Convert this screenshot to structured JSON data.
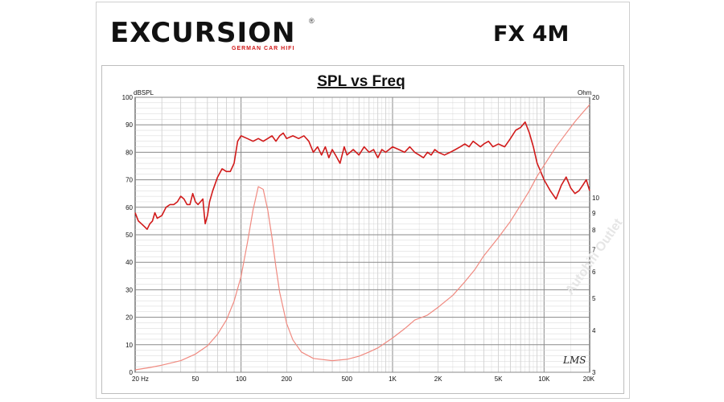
{
  "brand": {
    "logo": "EXCURSION",
    "registered": "®",
    "tagline": "GERMAN CAR HIFI",
    "model": "FX 4M",
    "accent": "#d11a1a"
  },
  "watermark": "Autohifi Outlet",
  "chart_data": {
    "type": "line",
    "title": "SPL vs Freq",
    "y_left_unit": "dBSPL",
    "y_right_unit": "Ohm",
    "x_scale": "log",
    "xlim": [
      20,
      20000
    ],
    "ylim": [
      0,
      100
    ],
    "y_right_lim": [
      3,
      20
    ],
    "y_right_scale": "log",
    "x_ticks": [
      {
        "value": 20,
        "label": "20 Hz"
      },
      {
        "value": 50,
        "label": "50"
      },
      {
        "value": 100,
        "label": "100"
      },
      {
        "value": 200,
        "label": "200"
      },
      {
        "value": 500,
        "label": "500"
      },
      {
        "value": 1000,
        "label": "1K"
      },
      {
        "value": 2000,
        "label": "2K"
      },
      {
        "value": 5000,
        "label": "5K"
      },
      {
        "value": 10000,
        "label": "10K"
      },
      {
        "value": 20000,
        "label": "20K"
      }
    ],
    "y_left_ticks": [
      0,
      10,
      20,
      30,
      40,
      50,
      60,
      70,
      80,
      90,
      100
    ],
    "y_right_ticks": [
      3,
      4,
      5,
      6,
      7,
      8,
      9,
      10,
      20
    ],
    "grid": true,
    "signature": "LMS",
    "series": [
      {
        "axis": "left",
        "color": "#d11a1a",
        "points": [
          [
            20,
            58
          ],
          [
            21,
            55
          ],
          [
            22,
            54
          ],
          [
            23,
            53
          ],
          [
            24,
            52
          ],
          [
            25,
            54
          ],
          [
            26,
            55
          ],
          [
            27,
            58
          ],
          [
            28,
            56
          ],
          [
            30,
            57
          ],
          [
            32,
            60
          ],
          [
            34,
            61
          ],
          [
            36,
            61
          ],
          [
            38,
            62
          ],
          [
            40,
            64
          ],
          [
            42,
            63
          ],
          [
            44,
            61
          ],
          [
            46,
            61
          ],
          [
            48,
            65
          ],
          [
            50,
            62
          ],
          [
            52,
            61
          ],
          [
            54,
            62
          ],
          [
            56,
            63
          ],
          [
            57,
            58
          ],
          [
            58,
            54
          ],
          [
            60,
            57
          ],
          [
            62,
            62
          ],
          [
            65,
            66
          ],
          [
            70,
            71
          ],
          [
            75,
            74
          ],
          [
            80,
            73
          ],
          [
            85,
            73
          ],
          [
            90,
            76
          ],
          [
            95,
            84
          ],
          [
            100,
            86
          ],
          [
            110,
            85
          ],
          [
            120,
            84
          ],
          [
            130,
            85
          ],
          [
            140,
            84
          ],
          [
            150,
            85
          ],
          [
            160,
            86
          ],
          [
            170,
            84
          ],
          [
            180,
            86
          ],
          [
            190,
            87
          ],
          [
            200,
            85
          ],
          [
            220,
            86
          ],
          [
            240,
            85
          ],
          [
            260,
            86
          ],
          [
            280,
            84
          ],
          [
            300,
            80
          ],
          [
            320,
            82
          ],
          [
            340,
            79
          ],
          [
            360,
            82
          ],
          [
            380,
            78
          ],
          [
            400,
            81
          ],
          [
            420,
            79
          ],
          [
            450,
            76
          ],
          [
            480,
            82
          ],
          [
            500,
            79
          ],
          [
            550,
            81
          ],
          [
            600,
            79
          ],
          [
            650,
            82
          ],
          [
            700,
            80
          ],
          [
            750,
            81
          ],
          [
            800,
            78
          ],
          [
            850,
            81
          ],
          [
            900,
            80
          ],
          [
            1000,
            82
          ],
          [
            1100,
            81
          ],
          [
            1200,
            80
          ],
          [
            1300,
            82
          ],
          [
            1400,
            80
          ],
          [
            1500,
            79
          ],
          [
            1600,
            78
          ],
          [
            1700,
            80
          ],
          [
            1800,
            79
          ],
          [
            1900,
            81
          ],
          [
            2000,
            80
          ],
          [
            2200,
            79
          ],
          [
            2400,
            80
          ],
          [
            2600,
            81
          ],
          [
            2800,
            82
          ],
          [
            3000,
            83
          ],
          [
            3200,
            82
          ],
          [
            3400,
            84
          ],
          [
            3600,
            83
          ],
          [
            3800,
            82
          ],
          [
            4000,
            83
          ],
          [
            4300,
            84
          ],
          [
            4600,
            82
          ],
          [
            5000,
            83
          ],
          [
            5500,
            82
          ],
          [
            6000,
            85
          ],
          [
            6500,
            88
          ],
          [
            7000,
            89
          ],
          [
            7500,
            91
          ],
          [
            8000,
            87
          ],
          [
            8500,
            82
          ],
          [
            9000,
            76
          ],
          [
            9500,
            73
          ],
          [
            10000,
            70
          ],
          [
            11000,
            66
          ],
          [
            12000,
            63
          ],
          [
            13000,
            68
          ],
          [
            14000,
            71
          ],
          [
            15000,
            67
          ],
          [
            16000,
            65
          ],
          [
            17000,
            66
          ],
          [
            18000,
            68
          ],
          [
            19000,
            70
          ],
          [
            20000,
            66
          ]
        ]
      },
      {
        "axis": "right",
        "color": "#f08a80",
        "points": [
          [
            20,
            3.05
          ],
          [
            25,
            3.1
          ],
          [
            30,
            3.15
          ],
          [
            40,
            3.25
          ],
          [
            50,
            3.4
          ],
          [
            60,
            3.6
          ],
          [
            70,
            3.9
          ],
          [
            80,
            4.3
          ],
          [
            90,
            4.9
          ],
          [
            100,
            5.8
          ],
          [
            110,
            7.3
          ],
          [
            120,
            9.2
          ],
          [
            130,
            10.8
          ],
          [
            140,
            10.6
          ],
          [
            150,
            9.2
          ],
          [
            160,
            7.6
          ],
          [
            170,
            6.2
          ],
          [
            180,
            5.2
          ],
          [
            200,
            4.2
          ],
          [
            220,
            3.75
          ],
          [
            250,
            3.45
          ],
          [
            300,
            3.3
          ],
          [
            400,
            3.25
          ],
          [
            500,
            3.28
          ],
          [
            600,
            3.35
          ],
          [
            700,
            3.45
          ],
          [
            800,
            3.55
          ],
          [
            1000,
            3.8
          ],
          [
            1200,
            4.05
          ],
          [
            1400,
            4.3
          ],
          [
            1500,
            4.35
          ],
          [
            1700,
            4.45
          ],
          [
            2000,
            4.7
          ],
          [
            2500,
            5.1
          ],
          [
            3000,
            5.6
          ],
          [
            3500,
            6.1
          ],
          [
            4000,
            6.7
          ],
          [
            5000,
            7.6
          ],
          [
            6000,
            8.5
          ],
          [
            7000,
            9.5
          ],
          [
            8000,
            10.5
          ],
          [
            9000,
            11.6
          ],
          [
            10000,
            12.5
          ],
          [
            12000,
            14.2
          ],
          [
            14000,
            15.6
          ],
          [
            16000,
            16.9
          ],
          [
            18000,
            18.0
          ],
          [
            20000,
            19.0
          ]
        ]
      }
    ]
  }
}
